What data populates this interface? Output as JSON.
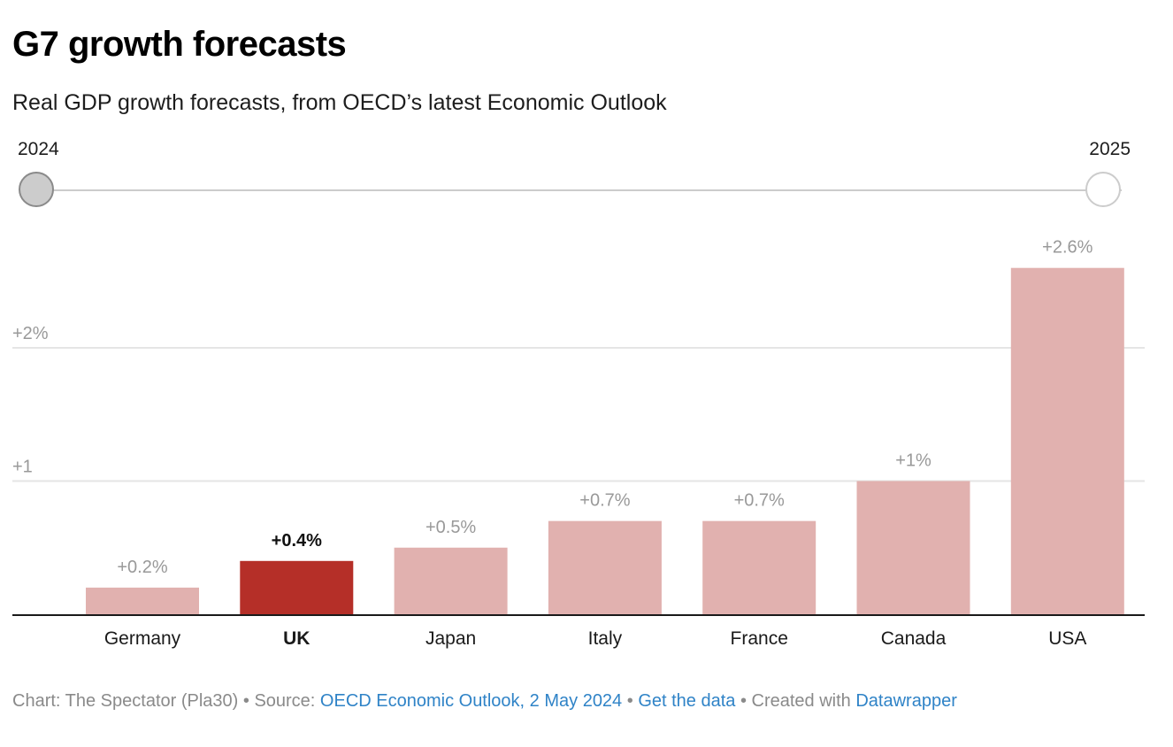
{
  "header": {
    "title": "G7 growth forecasts",
    "subtitle": "Real GDP growth forecasts, from OECD’s latest Economic Outlook"
  },
  "slider": {
    "start_label": "2024",
    "end_label": "2025",
    "selected": "2024"
  },
  "colors": {
    "bar": "#e1b1af",
    "highlight_bar": "#b52f28",
    "value_label": "#999999",
    "highlight_label": "#111111",
    "gridline": "#e5e5e5",
    "baseline": "#1a1a1a",
    "tick_label": "#999999",
    "link": "#2f83c7"
  },
  "chart_data": {
    "type": "bar",
    "title": "G7 growth forecasts",
    "subtitle": "Real GDP growth forecasts, from OECD’s latest Economic Outlook",
    "series_year": "2024",
    "categories": [
      "Germany",
      "UK",
      "Japan",
      "Italy",
      "France",
      "Canada",
      "USA"
    ],
    "values": [
      0.2,
      0.4,
      0.5,
      0.7,
      0.7,
      1.0,
      2.6
    ],
    "value_labels": [
      "+0.2%",
      "+0.4%",
      "+0.5%",
      "+0.7%",
      "+0.7%",
      "+1%",
      "+2.6%"
    ],
    "highlight": "UK",
    "unit": "%",
    "xlabel": "",
    "ylabel": "",
    "ylim": [
      0,
      2.6
    ],
    "yticks": [
      {
        "value": 1,
        "label": "+1"
      },
      {
        "value": 2,
        "label": "+2%"
      }
    ],
    "grid": true,
    "legend": "none"
  },
  "footer": {
    "chart_credit": "Chart: The Spectator (Pla30)",
    "separator": " • ",
    "source_prefix": "Source: ",
    "source_link": "OECD Economic Outlook, 2 May 2024",
    "get_data_link": "Get the data",
    "created_prefix": "Created with ",
    "datawrapper_link": "Datawrapper"
  }
}
